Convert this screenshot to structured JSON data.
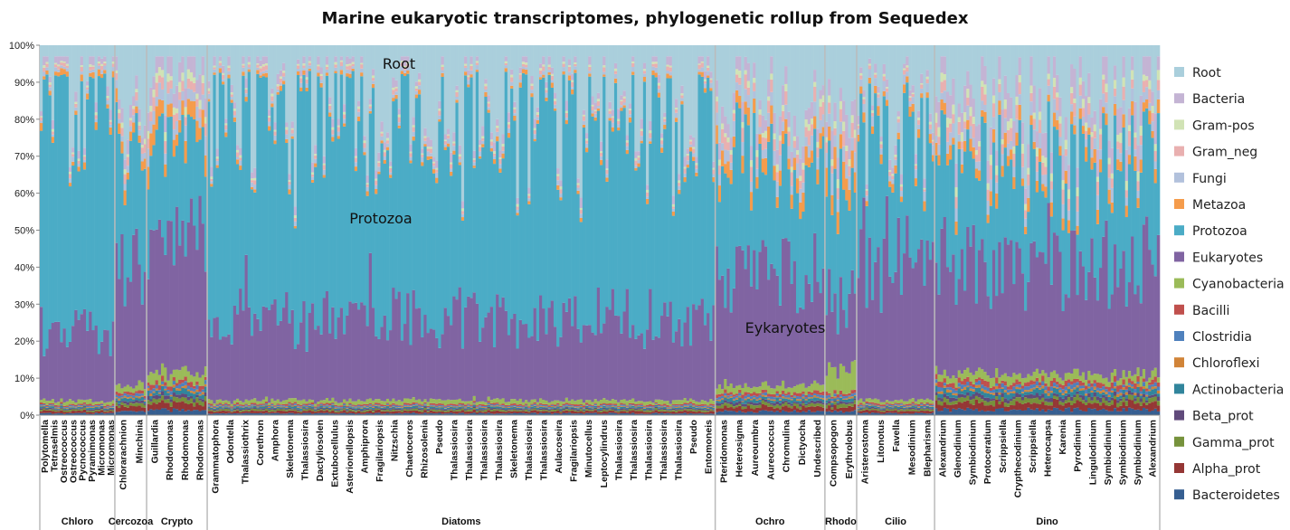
{
  "chart_data": {
    "type": "bar",
    "stacked": true,
    "normalized_percent": true,
    "title": "Marine eukaryotic transcriptomes, phylogenetic rollup from Sequedex",
    "xlabel": "",
    "ylabel": "",
    "ylim": [
      0,
      100
    ],
    "yticks": [
      "0%",
      "10%",
      "20%",
      "30%",
      "40%",
      "50%",
      "60%",
      "70%",
      "80%",
      "90%",
      "100%"
    ],
    "legend_position": "right",
    "series": [
      {
        "name": "Root",
        "color": "#aacfdc"
      },
      {
        "name": "Bacteria",
        "color": "#c4b4d4"
      },
      {
        "name": "Gram-pos",
        "color": "#d1e3b5"
      },
      {
        "name": "Gram_neg",
        "color": "#e9b0b0"
      },
      {
        "name": "Fungi",
        "color": "#b2c1dc"
      },
      {
        "name": "Metazoa",
        "color": "#f59c4c"
      },
      {
        "name": "Protozoa",
        "color": "#4bacc6"
      },
      {
        "name": "Eukaryotes",
        "color": "#8064a2"
      },
      {
        "name": "Cyanobacteria",
        "color": "#9bbb59"
      },
      {
        "name": "Bacilli",
        "color": "#c0504d"
      },
      {
        "name": "Clostridia",
        "color": "#4f81bd"
      },
      {
        "name": "Chloroflexi",
        "color": "#d18438"
      },
      {
        "name": "Actinobacteria",
        "color": "#31859c"
      },
      {
        "name": "Beta_prot",
        "color": "#604a7b"
      },
      {
        "name": "Gamma_prot",
        "color": "#76923c"
      },
      {
        "name": "Alpha_prot",
        "color": "#953735"
      },
      {
        "name": "Bacteroidetes",
        "color": "#365f91"
      }
    ],
    "groups": [
      {
        "name": "Chloro",
        "bars": 26,
        "labels": [
          "Polytomella",
          "Tetraselmis",
          "Ostreococcus",
          "Ostreococcus",
          "Pycnococcus",
          "Pyramimonas",
          "Micromonas",
          "Micromonas"
        ],
        "base": {
          "bact": 2,
          "cyano": 1,
          "euk": 18,
          "proto": 62,
          "meta": 1.5,
          "fungi": 1,
          "gneg": 1,
          "gpos": 0.5,
          "bac": 1
        }
      },
      {
        "name": "Cercozoa",
        "bars": 11,
        "labels": [
          "Chlorarachnion",
          "Minchinia"
        ],
        "base": {
          "bact": 3,
          "cyano": 2,
          "euk": 35,
          "proto": 30,
          "meta": 3,
          "fungi": 2,
          "gneg": 2,
          "gpos": 1,
          "bac": 2
        }
      },
      {
        "name": "Crypto",
        "bars": 21,
        "labels": [
          "Guillardia",
          "Rhodomonas",
          "Rhodomonas",
          "Rhodomonas"
        ],
        "base": {
          "bact": 5,
          "cyano": 3,
          "euk": 38,
          "proto": 25,
          "meta": 5,
          "fungi": 4,
          "gneg": 3,
          "gpos": 2,
          "bac": 3
        }
      },
      {
        "name": "Diatoms",
        "bars": 176,
        "labels": [
          "Grammatophora",
          "Odontella",
          "Thalassiothrix",
          "Corethron",
          "Amphora",
          "Skeletonema",
          "Thalassiosira",
          "Dactyliosolen",
          "Extubocellulus",
          "Asterionellopsis",
          "Amphiprora",
          "Fragilariopsis",
          "Nitzschia",
          "Chaetoceros",
          "Rhizosolenia",
          "Pseudo",
          "Thalassiosira",
          "Thalassiosira",
          "Thalassiosira",
          "Thalassiosira",
          "Skeletonema",
          "Thalassiosira",
          "Thalassiosira",
          "Aulacoseira",
          "Fragilariopsis",
          "Minutocellus",
          "Leptocylindrus",
          "Thalassiosira",
          "Thalassiosira",
          "Thalassiosira",
          "Thalassiosira",
          "Thalassiosira",
          "Pseudo",
          "Entomoneis"
        ],
        "base": {
          "bact": 2,
          "cyano": 1,
          "euk": 22,
          "proto": 53,
          "meta": 1,
          "fungi": 1,
          "gneg": 1,
          "gpos": 0.5,
          "bac": 1
        }
      },
      {
        "name": "Ochro",
        "bars": 38,
        "labels": [
          "Pteridomonas",
          "Heterosigma",
          "Aureoumbra",
          "Aureococcus",
          "Chromulina",
          "Dictyocha",
          "Undescribed"
        ],
        "base": {
          "bact": 4,
          "cyano": 2,
          "euk": 30,
          "proto": 30,
          "meta": 4,
          "fungi": 3,
          "gneg": 3,
          "gpos": 1.5,
          "bac": 2
        }
      },
      {
        "name": "Rhodo",
        "bars": 11,
        "labels": [
          "Compsopogon",
          "Erythrolobus"
        ],
        "base": {
          "bact": 6,
          "cyano": 6,
          "euk": 20,
          "proto": 25,
          "meta": 6,
          "fungi": 5,
          "gneg": 3,
          "gpos": 2,
          "bac": 2
        }
      },
      {
        "name": "Cilio",
        "bars": 27,
        "labels": [
          "Aristerostoma",
          "Litonotus",
          "Favella",
          "Mesodinium",
          "Blepharisma"
        ],
        "base": {
          "bact": 2,
          "cyano": 1,
          "euk": 40,
          "proto": 33,
          "meta": 2,
          "fungi": 2,
          "gneg": 1,
          "gpos": 0.5,
          "bac": 1
        }
      },
      {
        "name": "Dino",
        "bars": 78,
        "labels": [
          "Alexandrium",
          "Glenodinium",
          "Symbiodinium",
          "Protoceratium",
          "Scrippsiella",
          "Crypthecodinium",
          "Scrippsiella",
          "Heterocapsa",
          "Karenia",
          "Pyrodinium",
          "Lingulodinium",
          "Symbiodinium",
          "Symbiodinium",
          "Symbiodinium",
          "Alexandrium"
        ],
        "base": {
          "bact": 6,
          "cyano": 2,
          "euk": 30,
          "proto": 27,
          "meta": 3,
          "fungi": 3,
          "gneg": 3,
          "gpos": 2,
          "bac": 3
        }
      }
    ],
    "annotations": [
      "Root",
      "Protozoa",
      "Eykaryotes"
    ]
  }
}
